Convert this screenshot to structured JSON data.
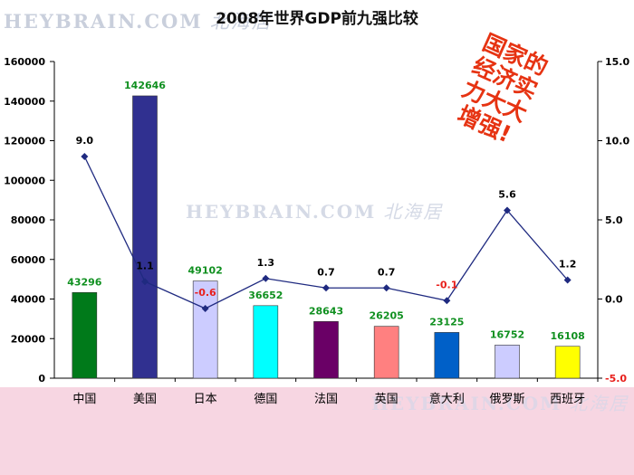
{
  "watermarks": {
    "top": "HEYBRAIN.COM",
    "top_cjk": "北海居",
    "middle": "HEYBRAIN.COM",
    "middle_cjk": "北海居",
    "bottom": "HEYBRAIN.COM",
    "bottom_cjk": "北海居"
  },
  "stamp": {
    "lines": [
      "国家的",
      "经济实",
      "力大大",
      "增强!"
    ]
  },
  "colors": {
    "axis": "#000000",
    "line": "#1f2a80",
    "gdp_label": "#109020",
    "neg_label": "#e8201c",
    "neg_tick": "#e8201c",
    "footer": "#f7d6e2"
  },
  "chart_data": {
    "type": "bar",
    "title": "2008年世界GDP前九强比较",
    "categories": [
      "中国",
      "美国",
      "日本",
      "德国",
      "法国",
      "英国",
      "意大利",
      "俄罗斯",
      "西班牙"
    ],
    "series": [
      {
        "values": [
          43296,
          142646,
          49102,
          36652,
          28643,
          26205,
          23125,
          16752,
          16108
        ],
        "colors": [
          "#007a1a",
          "#303090",
          "#ccccff",
          "#00ffff",
          "#6a0066",
          "#ff8080",
          "#0060c8",
          "#ccccff",
          "#ffff00"
        ]
      },
      {
        "type": "line",
        "axis": "right",
        "values": [
          9.0,
          1.1,
          -0.6,
          1.3,
          0.7,
          0.7,
          -0.1,
          5.6,
          1.2
        ],
        "labels": [
          "9.0",
          "1.1",
          "-0.6",
          "1.3",
          "0.7",
          "0.7",
          "-0.1",
          "5.6",
          "1.2"
        ]
      }
    ],
    "y_left": {
      "lim": [
        0,
        160000
      ],
      "ticks": [
        "0",
        "20000",
        "40000",
        "60000",
        "80000",
        "100000",
        "120000",
        "140000",
        "160000"
      ]
    },
    "y_right": {
      "lim": [
        -5,
        15
      ],
      "ticks": [
        "-5.0",
        "0.0",
        "5.0",
        "10.0",
        "15.0"
      ]
    },
    "grid": false,
    "legend": "none"
  }
}
